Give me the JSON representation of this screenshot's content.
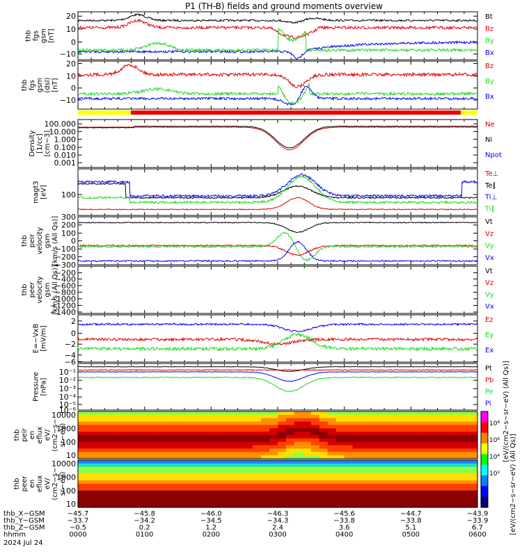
{
  "title": "P1 (TH-B) fields and ground moments overview",
  "colors": {
    "black": "#000000",
    "red": "#e00000",
    "green": "#1ed81e",
    "blue": "#0000ee",
    "yellow": "#ffff00",
    "bar_red": "#ee0000"
  },
  "chart_data": {
    "type": "line",
    "x_range": [
      "0000",
      "0600"
    ],
    "panels": [
      {
        "id": "fgs",
        "ylabel": [
          "thb",
          "fgs",
          "gsm",
          "[nT]"
        ],
        "yticks": [
          "20",
          "10",
          "0",
          "−10"
        ],
        "legend": [
          "Bt",
          "Bz",
          "By",
          "Bx"
        ]
      },
      {
        "id": "fgs_dsl",
        "ylabel": [
          "thb",
          "fgs",
          "gsm",
          "(dsl)",
          "[nT]"
        ],
        "yticks": [
          "20",
          "10",
          "0",
          "−10"
        ],
        "legend": [
          "Bz",
          "By",
          "Bx"
        ]
      },
      {
        "id": "density",
        "ylabel": [
          "Density",
          "[1/cc]",
          "[cm−3]"
        ],
        "yticks": [
          "100.000",
          "10.000",
          "1.000",
          "0.100",
          "0.010",
          "0.001"
        ],
        "legend": [
          "Ne",
          "Ni",
          "Npot"
        ]
      },
      {
        "id": "temp",
        "ylabel": [
          "magt3",
          "[eV]"
        ],
        "yticks": [
          "100"
        ],
        "legend": [
          "Te⊥",
          "Te∥",
          "Ti⊥",
          "Ti∥"
        ]
      },
      {
        "id": "peir_vel",
        "ylabel": [
          "thb",
          "peir",
          "velocity",
          "gsm",
          "[km/s (All Qs)]"
        ],
        "yticks": [
          "300",
          "200",
          "100",
          "0",
          "−100",
          "−200",
          "−300"
        ],
        "legend": [
          "Vt",
          "Vz",
          "Vy",
          "Vx"
        ]
      },
      {
        "id": "peer_vel",
        "ylabel": [
          "thb",
          "peer",
          "velocity",
          "gsm",
          "[km/s (All Qs)]"
        ],
        "yticks": [
          "−200",
          "−400",
          "−600",
          "−800",
          "−1000",
          "−1200",
          "−1400"
        ],
        "legend": [
          "Vt",
          "Vz",
          "Vy",
          "Vx"
        ]
      },
      {
        "id": "efield",
        "ylabel": [
          "E=−VxB",
          "[mV/m]"
        ],
        "yticks": [
          "2",
          "0",
          "−2",
          "−4",
          "−6"
        ],
        "legend": [
          "Ez",
          "Ey",
          "Ex"
        ]
      },
      {
        "id": "pressure",
        "ylabel": [
          "Pressure",
          "[nPa]"
        ],
        "yticks": [
          "10⁻¹",
          "10⁻²",
          "10⁻³",
          "10⁻⁴",
          "10⁻⁵",
          "10⁻⁶"
        ],
        "legend": [
          "Pt",
          "Pb",
          "Pe",
          "Pi"
        ]
      },
      {
        "id": "peir_eflux",
        "ylabel": [
          "thb",
          "peir",
          "en",
          "eflux",
          "eV/",
          "(cm2−s−",
          "sr−eV)"
        ],
        "yticks": [
          "10000",
          "1000",
          "100",
          "10"
        ]
      },
      {
        "id": "peer_eflux",
        "ylabel": [
          "thb",
          "peer",
          "en",
          "eflux",
          "eV/",
          "(cm2−s−",
          "sr−eV)"
        ],
        "yticks": [
          "10000",
          "1000",
          "100",
          "10"
        ]
      }
    ],
    "colorbar": {
      "ticks": [
        "10⁸",
        "10⁶",
        "10⁴",
        "10²"
      ],
      "label": "[eV/(cm2−s−sr−eV) (All Qs)]",
      "label2": "[eV/(cm2−s−sr−eV) (All Qs)]"
    },
    "x_axis": {
      "row_labels": [
        "thb_X−GSM",
        "thb_Y−GSM",
        "thb_Z−GSM",
        "hhmm",
        "2024 Jul 24"
      ],
      "columns": [
        [
          "−45.7",
          "−33.7",
          "−0.5",
          "0000"
        ],
        [
          "−45.8",
          "−34.2",
          "0.2",
          "0100"
        ],
        [
          "−46.0",
          "−34.5",
          "1.2",
          "0200"
        ],
        [
          "−46.3",
          "−34.3",
          "2.4",
          "0300"
        ],
        [
          "−45.6",
          "−33.8",
          "3.6",
          "0400"
        ],
        [
          "−44.7",
          "−33.8",
          "5.1",
          "0500"
        ],
        [
          "−43.9",
          "−33.9",
          "6.7",
          "0600"
        ]
      ]
    }
  }
}
